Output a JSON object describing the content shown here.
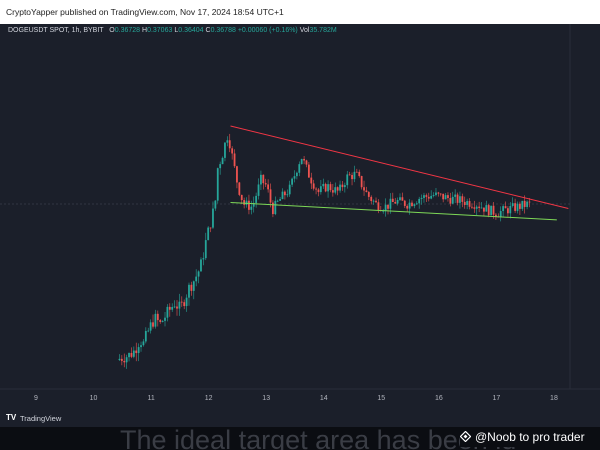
{
  "header": {
    "publisher_line": "CryptoYapper published on TradingView.com, Nov 17, 2024 18:54 UTC+1"
  },
  "legend": {
    "symbol": "DOGEUSDT SPOT, 1h, BYBIT",
    "open_label": "O",
    "open": "0.36728",
    "high_label": "H",
    "high": "0.37063",
    "low_label": "L",
    "low": "0.36404",
    "close_label": "C",
    "close": "0.36788",
    "change": "+0.00060 (+0.16%)",
    "vol_label": "Vol",
    "vol": "35.782M"
  },
  "footer": {
    "tv_logo": "TV",
    "tv_brand": "TradingView"
  },
  "overlay": {
    "caption": "The ideal target area has been id",
    "badge_icon": "binance-diamond-icon",
    "badge_text": "@Noob to pro trader"
  },
  "chart_data": {
    "type": "candlestick",
    "symbol": "DOGEUSDT SPOT",
    "interval": "1h",
    "exchange": "BYBIT",
    "x_ticks": [
      "9",
      "10",
      "11",
      "12",
      "13",
      "14",
      "15",
      "16",
      "17",
      "18"
    ],
    "x_unit": "day (November 2024)",
    "grid": false,
    "colors": {
      "up": "#26a69a",
      "down": "#ef5350",
      "resistance": "#f23645",
      "support": "#7ed957",
      "background": "#1b1f2a"
    },
    "close_path": [
      {
        "t": 10.45,
        "y": 0.08
      },
      {
        "t": 10.55,
        "y": 0.09
      },
      {
        "t": 10.65,
        "y": 0.095
      },
      {
        "t": 10.75,
        "y": 0.11
      },
      {
        "t": 10.85,
        "y": 0.15
      },
      {
        "t": 10.9,
        "y": 0.13
      },
      {
        "t": 11.0,
        "y": 0.18
      },
      {
        "t": 11.1,
        "y": 0.22
      },
      {
        "t": 11.2,
        "y": 0.2
      },
      {
        "t": 11.3,
        "y": 0.23
      },
      {
        "t": 11.45,
        "y": 0.27
      },
      {
        "t": 11.55,
        "y": 0.25
      },
      {
        "t": 11.7,
        "y": 0.32
      },
      {
        "t": 11.8,
        "y": 0.35
      },
      {
        "t": 11.9,
        "y": 0.39
      },
      {
        "t": 12.0,
        "y": 0.48
      },
      {
        "t": 12.1,
        "y": 0.56
      },
      {
        "t": 12.15,
        "y": 0.59
      },
      {
        "t": 12.2,
        "y": 0.72
      },
      {
        "t": 12.3,
        "y": 0.78
      },
      {
        "t": 12.38,
        "y": 0.84
      },
      {
        "t": 12.45,
        "y": 0.76
      },
      {
        "t": 12.55,
        "y": 0.66
      },
      {
        "t": 12.65,
        "y": 0.6
      },
      {
        "t": 12.8,
        "y": 0.59
      },
      {
        "t": 12.95,
        "y": 0.68
      },
      {
        "t": 13.05,
        "y": 0.66
      },
      {
        "t": 13.15,
        "y": 0.58
      },
      {
        "t": 13.3,
        "y": 0.62
      },
      {
        "t": 13.45,
        "y": 0.65
      },
      {
        "t": 13.65,
        "y": 0.76
      },
      {
        "t": 13.8,
        "y": 0.69
      },
      {
        "t": 13.95,
        "y": 0.64
      },
      {
        "t": 14.1,
        "y": 0.66
      },
      {
        "t": 14.3,
        "y": 0.64
      },
      {
        "t": 14.45,
        "y": 0.69
      },
      {
        "t": 14.6,
        "y": 0.7
      },
      {
        "t": 14.8,
        "y": 0.63
      },
      {
        "t": 14.95,
        "y": 0.6
      },
      {
        "t": 15.1,
        "y": 0.59
      },
      {
        "t": 15.3,
        "y": 0.61
      },
      {
        "t": 15.5,
        "y": 0.6
      },
      {
        "t": 15.7,
        "y": 0.62
      },
      {
        "t": 15.95,
        "y": 0.63
      },
      {
        "t": 16.2,
        "y": 0.62
      },
      {
        "t": 16.45,
        "y": 0.61
      },
      {
        "t": 16.7,
        "y": 0.6
      },
      {
        "t": 16.9,
        "y": 0.58
      },
      {
        "t": 17.05,
        "y": 0.57
      },
      {
        "t": 17.2,
        "y": 0.58
      },
      {
        "t": 17.4,
        "y": 0.59
      },
      {
        "t": 17.6,
        "y": 0.6
      }
    ],
    "trendlines": [
      {
        "name": "resistance",
        "start": {
          "t": 12.38,
          "y": 0.86
        },
        "end": {
          "t": 18.25,
          "y": 0.585
        }
      },
      {
        "name": "support",
        "start": {
          "t": 12.38,
          "y": 0.605
        },
        "end": {
          "t": 18.05,
          "y": 0.547
        }
      }
    ]
  }
}
